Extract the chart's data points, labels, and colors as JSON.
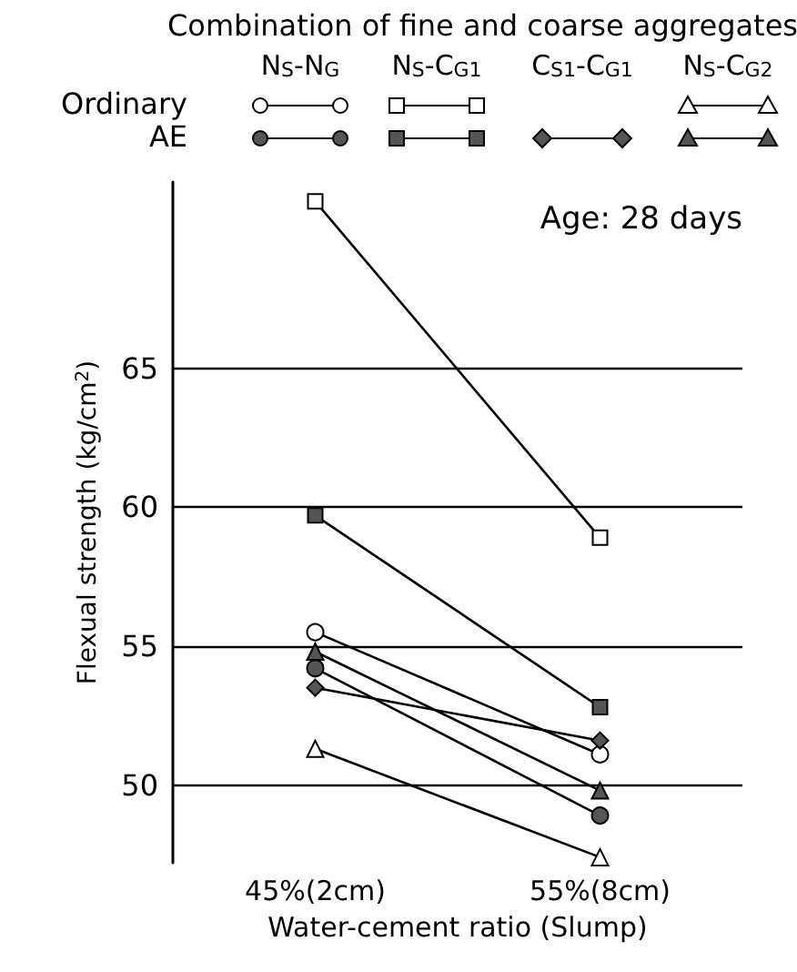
{
  "chart_data": {
    "type": "line",
    "legend_title": "Combination of fine and coarse aggregates",
    "annotations": [
      "N$_{S}$-N$_{G}$",
      "N$_{S}$-C$_{G1}$",
      "C$_{S1}$-C$_{G1}$",
      "N$_{S}$-C$_{G2}$",
      "Ordinary",
      "AE",
      "Age: 28 days"
    ],
    "xlabel": "Water-cement ratio (Slump)",
    "ylabel": "Flexual strength (kg/cm$^{2}$)",
    "categories": [
      "45%(2cm)",
      "55%(8cm)"
    ],
    "ylim": [
      47.2,
      71.7
    ],
    "yticks": [
      50,
      55,
      60,
      65
    ],
    "grid": "y",
    "line_style": "solid",
    "series": [
      {
        "marker": "circle",
        "color": "#000000",
        "values": [
          55.5,
          51.1
        ]
      },
      {
        "marker": "square",
        "color": "#000000",
        "values": [
          71.0,
          58.9
        ]
      },
      {
        "marker": "triangle",
        "color": "#000000",
        "values": [
          51.3,
          47.4
        ]
      },
      {
        "marker": "circle",
        "color": "#000000",
        "values": [
          54.2,
          48.9
        ]
      },
      {
        "marker": "square",
        "color": "#000000",
        "values": [
          59.7,
          52.8
        ]
      },
      {
        "marker": "diamond",
        "color": "#000000",
        "values": [
          53.5,
          51.6
        ]
      },
      {
        "marker": "triangle",
        "color": "#000000",
        "values": [
          54.8,
          49.8
        ]
      }
    ]
  }
}
